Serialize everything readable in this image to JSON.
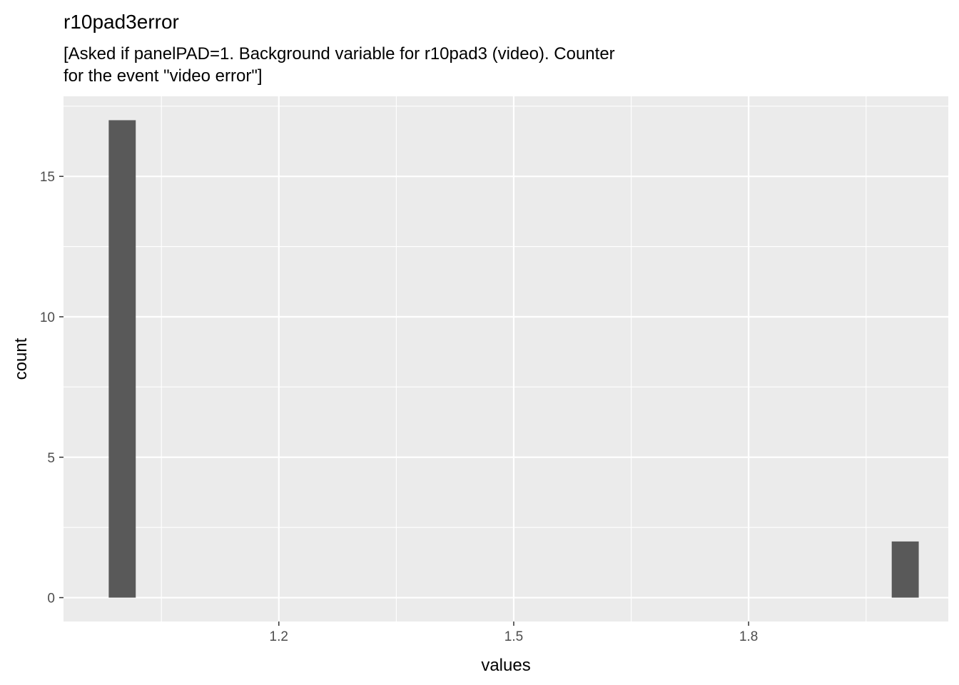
{
  "chart_data": {
    "type": "bar",
    "title": "r10pad3error",
    "subtitle_lines": [
      "[Asked if panelPAD=1. Background variable for r10pad3 (video). Counter",
      "for the event \"video error\"]"
    ],
    "xlabel": "values",
    "ylabel": "count",
    "xlim": [
      0.925,
      2.055
    ],
    "ylim": [
      -0.85,
      17.85
    ],
    "x_ticks": [
      1.2,
      1.5,
      1.8
    ],
    "x_tick_labels": [
      "1.2",
      "1.5",
      "1.8"
    ],
    "y_ticks": [
      0,
      5,
      10,
      15
    ],
    "y_tick_labels": [
      "0",
      "5",
      "10",
      "15"
    ],
    "bin_width": 0.0345,
    "bars": [
      {
        "x": 1.0,
        "count": 17
      },
      {
        "x": 2.0,
        "count": 2
      }
    ],
    "grid": true,
    "colors": {
      "panel_background": "#ebebeb",
      "grid_major": "#ffffff",
      "bar_fill": "#595959",
      "tick_color": "#333333"
    }
  }
}
